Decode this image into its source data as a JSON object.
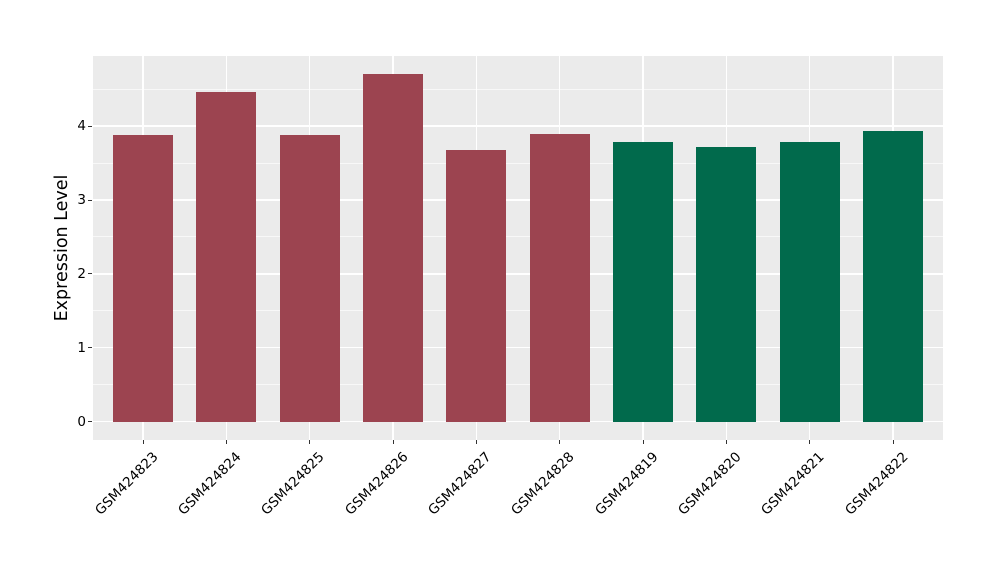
{
  "chart_data": {
    "type": "bar",
    "title": "",
    "ylabel": "Expression Level",
    "xlabel": "",
    "categories": [
      "GSM424823",
      "GSM424824",
      "GSM424825",
      "GSM424826",
      "GSM424827",
      "GSM424828",
      "GSM424819",
      "GSM424820",
      "GSM424821",
      "GSM424822"
    ],
    "values": [
      3.88,
      4.46,
      3.88,
      4.7,
      3.68,
      3.9,
      3.78,
      3.72,
      3.78,
      3.94
    ],
    "bar_colors": [
      "#9C4450",
      "#9C4450",
      "#9C4450",
      "#9C4450",
      "#9C4450",
      "#9C4450",
      "#016A4C",
      "#016A4C",
      "#016A4C",
      "#016A4C"
    ],
    "yticks": [
      0,
      1,
      2,
      3,
      4
    ],
    "yticks_minor": [
      0.5,
      1.5,
      2.5,
      3.5,
      4.5
    ],
    "ylim": [
      -0.25,
      4.95
    ],
    "grid": true,
    "legend_position": "none",
    "panel_bg": "#EBEBEB",
    "gridline_color": "#FFFFFF",
    "tick_color": "#333333",
    "text_color": "#000000",
    "figure_bg": "#FFFFFF"
  }
}
